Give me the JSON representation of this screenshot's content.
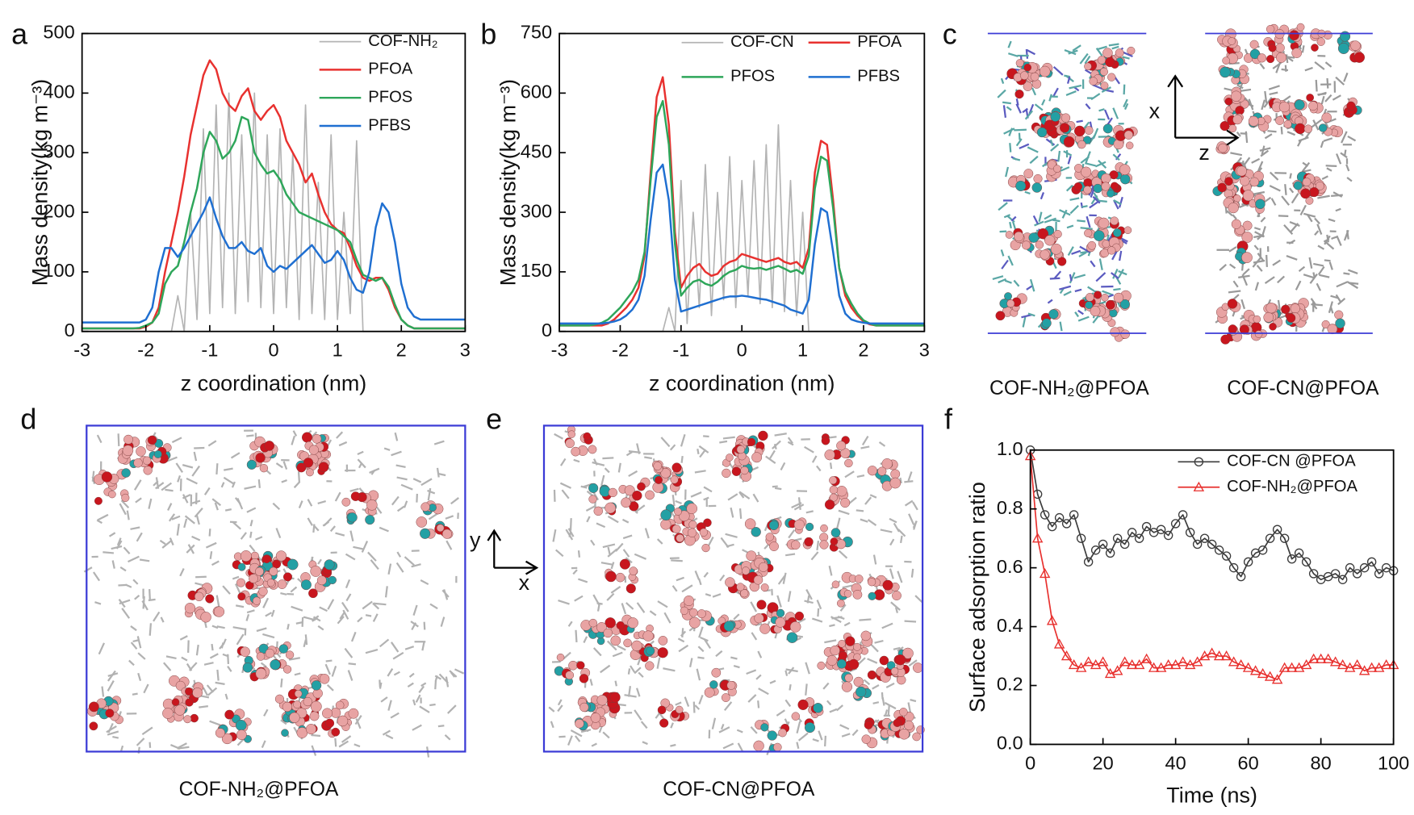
{
  "panel_labels": [
    "a",
    "b",
    "c",
    "d",
    "e",
    "f"
  ],
  "chart_data": [
    {
      "type": "line",
      "xlabel": "z coordination (nm)",
      "ylabel": "Mass density(kg m⁻³)",
      "xlim": [
        -3,
        3
      ],
      "ylim": [
        0,
        500
      ],
      "xticks": [
        -3,
        -2,
        -1,
        0,
        1,
        2,
        3
      ],
      "yticks": [
        0,
        100,
        200,
        300,
        400,
        500
      ],
      "legend": "upper right",
      "legend_columns": 1,
      "x": [
        -3,
        -2.9,
        -2.8,
        -2.7,
        -2.6,
        -2.5,
        -2.4,
        -2.3,
        -2.2,
        -2.1,
        -2,
        -1.9,
        -1.8,
        -1.7,
        -1.6,
        -1.5,
        -1.4,
        -1.3,
        -1.2,
        -1.1,
        -1,
        -0.9,
        -0.8,
        -0.7,
        -0.6,
        -0.5,
        -0.4,
        -0.3,
        -0.2,
        -0.1,
        0,
        0.1,
        0.2,
        0.3,
        0.4,
        0.5,
        0.6,
        0.7,
        0.8,
        0.9,
        1,
        1.1,
        1.2,
        1.3,
        1.4,
        1.5,
        1.6,
        1.7,
        1.8,
        1.9,
        2,
        2.1,
        2.2,
        2.3,
        2.4,
        2.5,
        2.6,
        2.7,
        2.8,
        2.9,
        3
      ],
      "series": [
        {
          "name": "COF-NH₂",
          "color": "#b4b4b4",
          "width": 1.5,
          "values": [
            0,
            0,
            0,
            0,
            0,
            0,
            0,
            0,
            0,
            0,
            0,
            0,
            0,
            0,
            0,
            60,
            0,
            200,
            20,
            340,
            30,
            380,
            40,
            400,
            30,
            330,
            50,
            400,
            40,
            330,
            30,
            340,
            40,
            300,
            20,
            380,
            30,
            250,
            20,
            330,
            20,
            200,
            30,
            320,
            0,
            0,
            0,
            0,
            0,
            0,
            0,
            0,
            0,
            0,
            0,
            0,
            0,
            0,
            0,
            0,
            0
          ]
        },
        {
          "name": "PFOA",
          "color": "#e8312f",
          "width": 2.2,
          "values": [
            5,
            5,
            5,
            5,
            5,
            5,
            5,
            5,
            5,
            5,
            8,
            15,
            40,
            100,
            150,
            200,
            260,
            330,
            380,
            430,
            455,
            440,
            400,
            380,
            370,
            395,
            408,
            370,
            355,
            370,
            380,
            360,
            320,
            300,
            280,
            250,
            265,
            230,
            200,
            180,
            170,
            165,
            140,
            110,
            90,
            85,
            90,
            90,
            70,
            40,
            20,
            10,
            5,
            5,
            5,
            5,
            5,
            5,
            5,
            5,
            5
          ]
        },
        {
          "name": "PFOS",
          "color": "#2ea65a",
          "width": 2.2,
          "values": [
            5,
            5,
            5,
            5,
            5,
            5,
            5,
            5,
            5,
            6,
            10,
            15,
            30,
            80,
            100,
            110,
            150,
            200,
            240,
            300,
            335,
            320,
            290,
            300,
            320,
            360,
            355,
            300,
            280,
            265,
            270,
            255,
            230,
            215,
            200,
            195,
            190,
            185,
            180,
            175,
            170,
            160,
            150,
            120,
            95,
            90,
            85,
            90,
            75,
            45,
            20,
            10,
            5,
            5,
            5,
            5,
            5,
            5,
            5,
            5,
            5
          ]
        },
        {
          "name": "PFBS",
          "color": "#1f6fd1",
          "width": 2.2,
          "values": [
            15,
            15,
            15,
            15,
            15,
            15,
            15,
            15,
            15,
            15,
            20,
            40,
            100,
            140,
            140,
            125,
            140,
            160,
            180,
            200,
            225,
            190,
            160,
            140,
            140,
            150,
            135,
            130,
            140,
            110,
            100,
            110,
            105,
            115,
            125,
            135,
            145,
            130,
            115,
            120,
            135,
            120,
            90,
            70,
            65,
            100,
            175,
            215,
            200,
            150,
            80,
            40,
            25,
            20,
            20,
            20,
            20,
            20,
            20,
            20,
            20
          ]
        }
      ]
    },
    {
      "type": "line",
      "xlabel": "z coordination (nm)",
      "ylabel": "Mass density(kg m⁻³)",
      "xlim": [
        -3,
        3
      ],
      "ylim": [
        0,
        750
      ],
      "xticks": [
        -3,
        -2,
        -1,
        0,
        1,
        2,
        3
      ],
      "yticks": [
        0,
        150,
        300,
        450,
        600,
        750
      ],
      "legend": "upper right",
      "legend_columns": 2,
      "x": [
        -3,
        -2.9,
        -2.8,
        -2.7,
        -2.6,
        -2.5,
        -2.4,
        -2.3,
        -2.2,
        -2.1,
        -2,
        -1.9,
        -1.8,
        -1.7,
        -1.6,
        -1.5,
        -1.4,
        -1.3,
        -1.2,
        -1.1,
        -1,
        -0.9,
        -0.8,
        -0.7,
        -0.6,
        -0.5,
        -0.4,
        -0.3,
        -0.2,
        -0.1,
        0,
        0.1,
        0.2,
        0.3,
        0.4,
        0.5,
        0.6,
        0.7,
        0.8,
        0.9,
        1,
        1.1,
        1.2,
        1.3,
        1.4,
        1.5,
        1.6,
        1.7,
        1.8,
        1.9,
        2,
        2.1,
        2.2,
        2.3,
        2.4,
        2.5,
        2.6,
        2.7,
        2.8,
        2.9,
        3
      ],
      "series": [
        {
          "name": "COF-CN",
          "color": "#b4b4b4",
          "width": 1.5,
          "values": [
            0,
            0,
            0,
            0,
            0,
            0,
            0,
            0,
            0,
            0,
            0,
            0,
            0,
            0,
            0,
            0,
            0,
            0,
            60,
            0,
            380,
            20,
            300,
            60,
            420,
            40,
            350,
            80,
            440,
            60,
            380,
            90,
            430,
            70,
            470,
            60,
            520,
            50,
            380,
            40,
            300,
            0,
            0,
            0,
            0,
            0,
            0,
            0,
            0,
            0,
            0,
            0,
            0,
            0,
            0,
            0,
            0,
            0,
            0,
            0,
            0
          ]
        },
        {
          "name": "PFOA",
          "color": "#e8312f",
          "width": 2.2,
          "values": [
            15,
            15,
            15,
            15,
            15,
            15,
            15,
            15,
            20,
            30,
            45,
            60,
            80,
            110,
            190,
            400,
            590,
            640,
            520,
            250,
            110,
            140,
            160,
            170,
            150,
            140,
            145,
            165,
            175,
            180,
            195,
            190,
            185,
            180,
            175,
            180,
            185,
            175,
            170,
            175,
            160,
            210,
            400,
            480,
            470,
            330,
            160,
            90,
            60,
            40,
            25,
            18,
            15,
            15,
            15,
            15,
            15,
            15,
            15,
            15,
            15
          ]
        },
        {
          "name": "PFOS",
          "color": "#2ea65a",
          "width": 2.2,
          "values": [
            15,
            15,
            15,
            15,
            15,
            15,
            18,
            22,
            30,
            45,
            60,
            80,
            100,
            130,
            200,
            380,
            540,
            580,
            470,
            220,
            90,
            110,
            125,
            130,
            120,
            115,
            125,
            140,
            150,
            155,
            165,
            160,
            158,
            160,
            155,
            160,
            165,
            158,
            150,
            155,
            145,
            190,
            360,
            440,
            430,
            310,
            160,
            100,
            70,
            45,
            28,
            20,
            15,
            15,
            15,
            15,
            15,
            15,
            15,
            15,
            15
          ]
        },
        {
          "name": "PFBS",
          "color": "#1f6fd1",
          "width": 2.2,
          "values": [
            20,
            20,
            20,
            20,
            20,
            20,
            20,
            20,
            22,
            25,
            30,
            40,
            55,
            80,
            140,
            280,
            400,
            420,
            330,
            130,
            50,
            55,
            60,
            65,
            70,
            75,
            80,
            85,
            88,
            88,
            90,
            88,
            85,
            82,
            80,
            75,
            70,
            65,
            55,
            50,
            45,
            80,
            220,
            310,
            300,
            200,
            90,
            45,
            30,
            25,
            22,
            20,
            20,
            20,
            20,
            20,
            20,
            20,
            20,
            20,
            20
          ]
        }
      ]
    },
    {
      "type": "line",
      "xlabel": "Time (ns)",
      "ylabel": "Surface adsorption ratio",
      "xlim": [
        0,
        100
      ],
      "ylim": [
        0,
        1
      ],
      "xticks": [
        0,
        20,
        40,
        60,
        80,
        100
      ],
      "yticks": [
        {
          "value": 0,
          "label": "0.0"
        },
        0.2,
        0.4,
        0.6,
        0.8,
        {
          "value": 1,
          "label": "1.0"
        }
      ],
      "legend": "upper right",
      "legend_columns": 1,
      "x": [
        0,
        2,
        4,
        6,
        8,
        10,
        12,
        14,
        16,
        18,
        20,
        22,
        24,
        26,
        28,
        30,
        32,
        34,
        36,
        38,
        40,
        42,
        44,
        46,
        48,
        50,
        52,
        54,
        56,
        58,
        60,
        62,
        64,
        66,
        68,
        70,
        72,
        74,
        76,
        78,
        80,
        82,
        84,
        86,
        88,
        90,
        92,
        94,
        96,
        98,
        100
      ],
      "series": [
        {
          "name": "COF-CN @PFOA",
          "color": "#3c3c3c",
          "marker": "circle",
          "width": 1.5,
          "values": [
            1.0,
            0.85,
            0.78,
            0.74,
            0.77,
            0.75,
            0.78,
            0.7,
            0.62,
            0.66,
            0.68,
            0.65,
            0.7,
            0.68,
            0.72,
            0.7,
            0.74,
            0.72,
            0.73,
            0.71,
            0.75,
            0.78,
            0.72,
            0.68,
            0.7,
            0.68,
            0.66,
            0.64,
            0.6,
            0.57,
            0.62,
            0.65,
            0.66,
            0.7,
            0.73,
            0.7,
            0.63,
            0.65,
            0.62,
            0.58,
            0.56,
            0.57,
            0.58,
            0.56,
            0.6,
            0.58,
            0.6,
            0.62,
            0.58,
            0.6,
            0.59
          ]
        },
        {
          "name": "COF-NH₂@PFOA",
          "color": "#e8312f",
          "marker": "triangle",
          "width": 1.5,
          "values": [
            0.98,
            0.7,
            0.58,
            0.42,
            0.34,
            0.3,
            0.27,
            0.26,
            0.28,
            0.27,
            0.28,
            0.24,
            0.25,
            0.28,
            0.27,
            0.27,
            0.29,
            0.26,
            0.26,
            0.27,
            0.27,
            0.28,
            0.27,
            0.28,
            0.3,
            0.31,
            0.3,
            0.3,
            0.28,
            0.27,
            0.26,
            0.25,
            0.24,
            0.23,
            0.22,
            0.26,
            0.26,
            0.26,
            0.27,
            0.29,
            0.29,
            0.29,
            0.28,
            0.27,
            0.26,
            0.27,
            0.25,
            0.26,
            0.26,
            0.27,
            0.27
          ]
        }
      ]
    }
  ],
  "structures": {
    "c": {
      "axes": [
        "x",
        "z"
      ],
      "captions": [
        "COF-NH₂@PFOA",
        "COF-CN@PFOA"
      ]
    },
    "d": {
      "caption": "COF-NH₂@PFOA"
    },
    "e": {
      "axes": [
        "y",
        "x"
      ],
      "caption": "COF-CN@PFOA"
    }
  }
}
